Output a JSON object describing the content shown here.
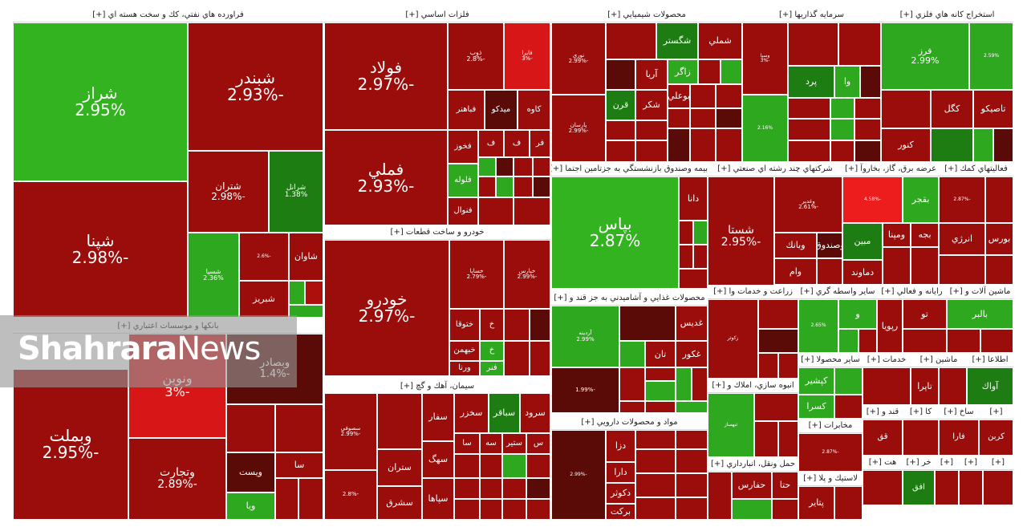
{
  "colors": {
    "dg": "#1e7d12",
    "g": "#2ea81e",
    "lg": "#33b320",
    "dr": "#5a0b07",
    "r": "#9b0d0b",
    "rr": "#ad0f0c",
    "br": "#d71717",
    "vbr": "#ee1d1d"
  },
  "watermark": {
    "bold": "Shahrara",
    "light": "News"
  },
  "chart_data": {
    "type": "treemap",
    "sectors": [
      {
        "title": "فراورده هاي نفتي، كك و سخت هسته اي [+]",
        "tiles": [
          {
            "name": "شراز",
            "value": "2.95%"
          },
          {
            "name": "شبندر",
            "value": "-2.93%"
          },
          {
            "name": "شپنا",
            "value": "-2.98%"
          },
          {
            "name": "شتران",
            "value": "-2.98%"
          },
          {
            "name": "شرانل",
            "value": "1.38%"
          },
          {
            "name": "شسپا",
            "value": "2.36%"
          },
          {
            "name": "",
            "value": "-2.6%"
          },
          {
            "name": "شاوان",
            "value": ""
          },
          {
            "name": "شبريز",
            "value": ""
          }
        ]
      },
      {
        "title": "بانكها و موسسات اعتباري [+]",
        "tiles": [
          {
            "name": "وبملت",
            "value": "-2.95%"
          },
          {
            "name": "ونوين",
            "value": "-3%"
          },
          {
            "name": "وتجارت",
            "value": "-2.89%"
          },
          {
            "name": "وبصادر",
            "value": "-1.4%"
          },
          {
            "name": "وخاور",
            "value": ""
          },
          {
            "name": "وگردش",
            "value": ""
          },
          {
            "name": "ويست",
            "value": ""
          },
          {
            "name": "سا",
            "value": ""
          },
          {
            "name": "ويا",
            "value": ""
          }
        ]
      },
      {
        "title": "فلزات اساسي [+]",
        "tiles": [
          {
            "name": "فولاد",
            "value": "-2.97%"
          },
          {
            "name": "فملي",
            "value": "-2.93%"
          },
          {
            "name": "ذوب",
            "value": "-2.8%"
          },
          {
            "name": "فايرا",
            "value": "-3%"
          },
          {
            "name": "فباهنر",
            "value": ""
          },
          {
            "name": "ميدكو",
            "value": ""
          },
          {
            "name": "كاوه",
            "value": ""
          },
          {
            "name": "فخوز",
            "value": ""
          },
          {
            "name": "ف",
            "value": ""
          },
          {
            "name": "ف",
            "value": ""
          },
          {
            "name": "فر",
            "value": ""
          },
          {
            "name": "فلوله",
            "value": ""
          },
          {
            "name": "فنوال",
            "value": ""
          }
        ]
      },
      {
        "title": "خودرو و ساخت قطعات [+]",
        "tiles": [
          {
            "name": "خودرو",
            "value": "-2.97%"
          },
          {
            "name": "خساپا",
            "value": "-2.79%"
          },
          {
            "name": "خپارس",
            "value": "-2.99%"
          },
          {
            "name": "ختوقا",
            "value": ""
          },
          {
            "name": "خ",
            "value": ""
          },
          {
            "name": "خبهمن",
            "value": ""
          },
          {
            "name": "خ",
            "value": ""
          },
          {
            "name": "ورنا",
            "value": ""
          },
          {
            "name": "فنر",
            "value": ""
          }
        ]
      },
      {
        "title": "سيمان، آهك و گچ [+]",
        "tiles": [
          {
            "name": "سصوفي",
            "value": "-2.99%"
          },
          {
            "name": "",
            "value": ""
          },
          {
            "name": "سفار",
            "value": ""
          },
          {
            "name": "سخزر",
            "value": ""
          },
          {
            "name": "سباقر",
            "value": ""
          },
          {
            "name": "سرود",
            "value": ""
          },
          {
            "name": "",
            "value": "-2.8%"
          },
          {
            "name": "ستران",
            "value": ""
          },
          {
            "name": "سهگ",
            "value": ""
          },
          {
            "name": "سشرق",
            "value": ""
          },
          {
            "name": "سپاها",
            "value": ""
          },
          {
            "name": "سا",
            "value": ""
          },
          {
            "name": "سه",
            "value": ""
          },
          {
            "name": "ستير",
            "value": ""
          },
          {
            "name": "س",
            "value": ""
          }
        ]
      },
      {
        "title": "محصولات شيميايي [+]",
        "tiles": [
          {
            "name": "نوري",
            "value": "-2.99%"
          },
          {
            "name": "پارسان",
            "value": "-2.99%"
          },
          {
            "name": "جم پيلن",
            "value": ""
          },
          {
            "name": "شگستر",
            "value": ""
          },
          {
            "name": "شملي",
            "value": ""
          },
          {
            "name": "شكام",
            "value": ""
          },
          {
            "name": "آريا",
            "value": ""
          },
          {
            "name": "زاگر",
            "value": ""
          },
          {
            "name": "شيراز",
            "value": ""
          },
          {
            "name": "كلر",
            "value": ""
          },
          {
            "name": "قرن",
            "value": ""
          },
          {
            "name": "شكر",
            "value": ""
          },
          {
            "name": "بوعلي",
            "value": ""
          }
        ]
      },
      {
        "title": "بيمه وصندوق بازنشستگي به جزتامين اجتما [+]",
        "tiles": [
          {
            "name": "بپاس",
            "value": "2.87%"
          },
          {
            "name": "دانا",
            "value": ""
          }
        ]
      },
      {
        "title": "محصولات غذايي و آشاميدني به جز قند و [+]",
        "tiles": [
          {
            "name": "آردينه",
            "value": "2.99%"
          },
          {
            "name": "",
            "value": "-1.99%"
          },
          {
            "name": "غبينو",
            "value": ""
          },
          {
            "name": "غديس",
            "value": ""
          },
          {
            "name": "غكور",
            "value": ""
          },
          {
            "name": "غنو",
            "value": ""
          },
          {
            "name": "تان",
            "value": ""
          }
        ]
      },
      {
        "title": "مواد و محصولات دارويي [+]",
        "tiles": [
          {
            "name": "",
            "value": "-2.99%"
          },
          {
            "name": "دكوثر",
            "value": ""
          },
          {
            "name": "دارا",
            "value": ""
          },
          {
            "name": "بركت",
            "value": ""
          },
          {
            "name": "دزا",
            "value": ""
          }
        ]
      },
      {
        "title": "سرمايه گذاريها [+]",
        "tiles": [
          {
            "name": "وسپا",
            "value": "-3%"
          },
          {
            "name": "",
            "value": "2.16%"
          },
          {
            "name": "آريان",
            "value": ""
          },
          {
            "name": "شهر",
            "value": ""
          },
          {
            "name": "پرد",
            "value": ""
          },
          {
            "name": "وا",
            "value": ""
          },
          {
            "name": "س",
            "value": ""
          }
        ]
      },
      {
        "title": "استخراج كانه هاي فلزي [+]",
        "tiles": [
          {
            "name": "فرز",
            "value": "2.99%"
          },
          {
            "name": "",
            "value": "2.59%"
          },
          {
            "name": "ومعادن",
            "value": ""
          },
          {
            "name": "كگل",
            "value": ""
          },
          {
            "name": "تاصيكو",
            "value": ""
          },
          {
            "name": "كنور",
            "value": ""
          }
        ]
      },
      {
        "title": "شركتهاي چند رشته اي صنعتي [+]",
        "tiles": [
          {
            "name": "شستا",
            "value": "-2.95%"
          },
          {
            "name": "وغدير",
            "value": "-2.61%"
          },
          {
            "name": "وبانك",
            "value": ""
          },
          {
            "name": "وصندوق",
            "value": ""
          },
          {
            "name": "وام",
            "value": ""
          }
        ]
      },
      {
        "title": "عرضه برق، گاز، بخاروآ [+]",
        "tiles": [
          {
            "name": "",
            "value": "-4.58%"
          },
          {
            "name": "بقجر",
            "value": ""
          },
          {
            "name": "مبين",
            "value": ""
          },
          {
            "name": "ومپنا",
            "value": ""
          },
          {
            "name": "بجه",
            "value": ""
          },
          {
            "name": "دماوند",
            "value": ""
          }
        ]
      },
      {
        "title": "فعاليتهاي كمك [+]",
        "tiles": [
          {
            "name": "",
            "value": "-2.87%"
          },
          {
            "name": "فرابورس",
            "value": ""
          },
          {
            "name": "انرژي",
            "value": ""
          },
          {
            "name": "بورس",
            "value": ""
          }
        ]
      },
      {
        "title": "زراعت و خدمات وا [+]",
        "tiles": [
          {
            "name": "زكوثر",
            "value": ""
          },
          {
            "name": "زكشا",
            "value": ""
          }
        ]
      },
      {
        "title": "انبوه سازي، املاك و [+]",
        "tiles": [
          {
            "name": "ثبهساز",
            "value": ""
          }
        ]
      },
      {
        "title": "حمل ونقل، انبارداري [+]",
        "tiles": [
          {
            "name": "حكشتي",
            "value": ""
          },
          {
            "name": "حفارس",
            "value": ""
          },
          {
            "name": "حتا",
            "value": ""
          }
        ]
      },
      {
        "title": "ساير واسطه گري [+]",
        "tiles": [
          {
            "name": "",
            "value": "2.65%"
          },
          {
            "name": "و",
            "value": ""
          }
        ]
      },
      {
        "title": "ساير محصولا [+]",
        "tiles": [
          {
            "name": "كپشير",
            "value": ""
          },
          {
            "name": "كسرا",
            "value": ""
          }
        ]
      },
      {
        "title": "مخابرات [+]",
        "tiles": [
          {
            "name": "",
            "value": "-2.87%"
          }
        ]
      },
      {
        "title": "لاستيك و پلا [+]",
        "tiles": [
          {
            "name": "پتاير",
            "value": ""
          }
        ]
      },
      {
        "title": "رايانه و فعالي [+]",
        "tiles": [
          {
            "name": "رپويا",
            "value": ""
          },
          {
            "name": "تو",
            "value": ""
          }
        ]
      },
      {
        "title": "ماشين آلات و [+]",
        "tiles": [
          {
            "name": "بالبر",
            "value": ""
          }
        ]
      },
      {
        "title": "خدمات [+]",
        "tiles": []
      },
      {
        "title": "ماشين [+]",
        "tiles": [
          {
            "name": "تاپرا",
            "value": ""
          }
        ]
      },
      {
        "title": "اطلاعا [+]",
        "tiles": [
          {
            "name": "آواك",
            "value": ""
          }
        ]
      },
      {
        "title": "قند و [+]",
        "tiles": [
          {
            "name": "قق",
            "value": ""
          }
        ]
      },
      {
        "title": "كا [+]",
        "tiles": []
      },
      {
        "title": "ساخ [+]",
        "tiles": [
          {
            "name": "فارا",
            "value": ""
          }
        ]
      },
      {
        "title": "[+]",
        "tiles": [
          {
            "name": "كربن",
            "value": ""
          }
        ]
      },
      {
        "title": "خر [+]",
        "tiles": [
          {
            "name": "افق",
            "value": ""
          }
        ]
      },
      {
        "title": "هت [+]",
        "tiles": []
      },
      {
        "title": "[+]",
        "tiles": []
      },
      {
        "title": "[+]",
        "tiles": []
      },
      {
        "title": "[+]",
        "tiles": []
      },
      {
        "title": "[+]",
        "tiles": []
      }
    ]
  }
}
